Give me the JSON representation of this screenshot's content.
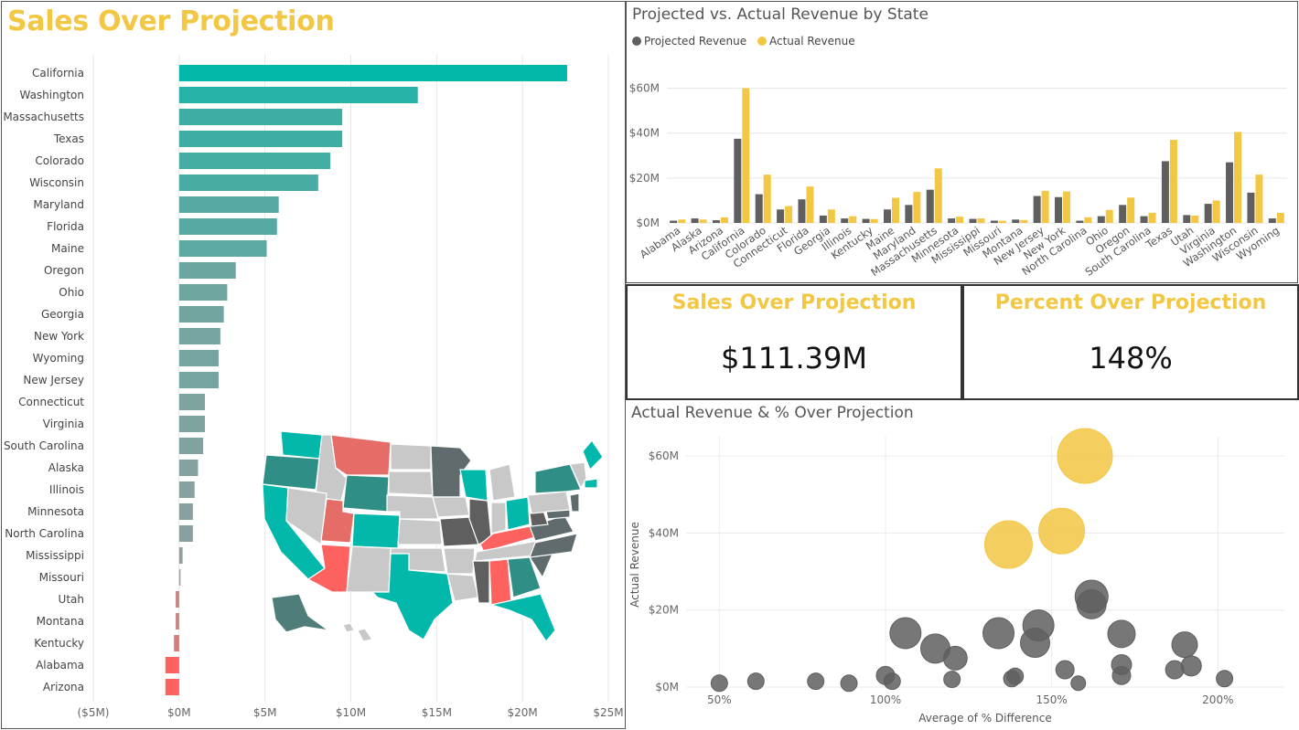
{
  "main_title": "Sales Over Projection",
  "colors": {
    "accent": "#F2C744",
    "projected": "#5F5F5F",
    "actual": "#F2C744",
    "teal": "#01B8AA",
    "red": "#FD625E",
    "gray_map": "#C8C8C8",
    "dark_map": "#5F6B6D"
  },
  "cards": [
    {
      "title": "Sales Over Projection",
      "value": "$111.39M"
    },
    {
      "title": "Percent Over Projection",
      "value": "148%"
    }
  ],
  "map": {
    "icon": "us-state-map-icon"
  },
  "chart_data": [
    {
      "type": "bar",
      "orientation": "horizontal",
      "title": "",
      "categories": [
        "California",
        "Washington",
        "Massachusetts",
        "Texas",
        "Colorado",
        "Wisconsin",
        "Maryland",
        "Florida",
        "Maine",
        "Oregon",
        "Ohio",
        "Georgia",
        "New York",
        "Wyoming",
        "New Jersey",
        "Connecticut",
        "Virginia",
        "South Carolina",
        "Alaska",
        "Illinois",
        "Minnesota",
        "North Carolina",
        "Mississippi",
        "Missouri",
        "Utah",
        "Montana",
        "Kentucky",
        "Alabama",
        "Arizona"
      ],
      "values": [
        22.6,
        13.9,
        9.5,
        9.5,
        8.8,
        8.1,
        5.8,
        5.7,
        5.1,
        3.3,
        2.8,
        2.6,
        2.4,
        2.3,
        2.3,
        1.5,
        1.5,
        1.4,
        1.1,
        0.9,
        0.8,
        0.8,
        0.2,
        0.05,
        -0.2,
        -0.2,
        -0.3,
        -0.8,
        -0.8
      ],
      "x_ticks": [
        "($5M)",
        "$0M",
        "$5M",
        "$10M",
        "$15M",
        "$20M",
        "$25M"
      ],
      "xlim": [
        -5,
        25
      ],
      "grid": true
    },
    {
      "type": "bar",
      "title": "Projected vs. Actual Revenue by State",
      "legend": [
        "Projected Revenue",
        "Actual Revenue"
      ],
      "legend_position": "top-left",
      "categories": [
        "Alabama",
        "Alaska",
        "Arizona",
        "California",
        "Colorado",
        "Connecticut",
        "Florida",
        "Georgia",
        "Illinois",
        "Kentucky",
        "Maine",
        "Maryland",
        "Massachusetts",
        "Minnesota",
        "Mississippi",
        "Missouri",
        "Montana",
        "New Jersey",
        "New York",
        "North Carolina",
        "Ohio",
        "Oregon",
        "South Carolina",
        "Texas",
        "Utah",
        "Virginia",
        "Washington",
        "Wisconsin",
        "Wyoming"
      ],
      "series": [
        {
          "name": "Projected Revenue",
          "values": [
            1.0,
            2.0,
            1.2,
            37.5,
            12.8,
            6.0,
            10.5,
            3.3,
            2.0,
            1.8,
            6.0,
            8.0,
            14.8,
            2.0,
            1.8,
            1.0,
            1.5,
            12.0,
            11.5,
            1.0,
            3.0,
            8.0,
            3.0,
            27.5,
            3.5,
            8.5,
            27.0,
            13.5,
            2.0
          ]
        },
        {
          "name": "Actual Revenue",
          "values": [
            1.5,
            1.5,
            2.5,
            60.0,
            21.5,
            7.5,
            16.2,
            6.0,
            3.0,
            1.7,
            11.2,
            13.8,
            24.3,
            2.8,
            2.0,
            1.0,
            1.3,
            14.3,
            14.0,
            2.5,
            5.8,
            11.3,
            4.5,
            37.0,
            3.3,
            10.0,
            40.5,
            21.5,
            4.5
          ]
        }
      ],
      "y_ticks": [
        "$0M",
        "$20M",
        "$40M",
        "$60M"
      ],
      "ylim": [
        0,
        70
      ],
      "grid": true
    },
    {
      "type": "scatter",
      "title": "Actual Revenue & % Over Projection",
      "xlabel": "Average of % Difference",
      "ylabel": "Actual Revenue",
      "x_ticks": [
        "50%",
        "100%",
        "150%",
        "200%"
      ],
      "y_ticks": [
        "$0M",
        "$20M",
        "$40M",
        "$60M"
      ],
      "xlim": [
        40,
        220
      ],
      "ylim": [
        0,
        65
      ],
      "points": [
        {
          "x": 160,
          "y": 60.0,
          "r": 30,
          "c": "actual"
        },
        {
          "x": 153,
          "y": 40.5,
          "r": 25,
          "c": "actual"
        },
        {
          "x": 137,
          "y": 37.0,
          "r": 26,
          "c": "actual"
        },
        {
          "x": 162,
          "y": 23.5,
          "r": 18,
          "c": "projected"
        },
        {
          "x": 162,
          "y": 21.5,
          "r": 16,
          "c": "projected"
        },
        {
          "x": 146,
          "y": 16.0,
          "r": 17,
          "c": "projected"
        },
        {
          "x": 106,
          "y": 14.0,
          "r": 17,
          "c": "projected"
        },
        {
          "x": 134,
          "y": 14.0,
          "r": 17,
          "c": "projected"
        },
        {
          "x": 171,
          "y": 13.8,
          "r": 15,
          "c": "projected"
        },
        {
          "x": 145,
          "y": 11.5,
          "r": 16,
          "c": "projected"
        },
        {
          "x": 190,
          "y": 11.0,
          "r": 14,
          "c": "projected"
        },
        {
          "x": 115,
          "y": 10.0,
          "r": 16,
          "c": "projected"
        },
        {
          "x": 121,
          "y": 7.5,
          "r": 13,
          "c": "projected"
        },
        {
          "x": 171,
          "y": 5.8,
          "r": 11,
          "c": "projected"
        },
        {
          "x": 192,
          "y": 5.5,
          "r": 11,
          "c": "projected"
        },
        {
          "x": 154,
          "y": 4.5,
          "r": 10,
          "c": "projected"
        },
        {
          "x": 187,
          "y": 4.5,
          "r": 10,
          "c": "projected"
        },
        {
          "x": 100,
          "y": 3.0,
          "r": 10,
          "c": "projected"
        },
        {
          "x": 171,
          "y": 3.0,
          "r": 10,
          "c": "projected"
        },
        {
          "x": 139,
          "y": 2.8,
          "r": 9,
          "c": "projected"
        },
        {
          "x": 138,
          "y": 2.2,
          "r": 9,
          "c": "projected"
        },
        {
          "x": 202,
          "y": 2.2,
          "r": 9,
          "c": "projected"
        },
        {
          "x": 120,
          "y": 2.0,
          "r": 9,
          "c": "projected"
        },
        {
          "x": 102,
          "y": 1.5,
          "r": 9,
          "c": "projected"
        },
        {
          "x": 61,
          "y": 1.5,
          "r": 9,
          "c": "projected"
        },
        {
          "x": 79,
          "y": 1.5,
          "r": 9,
          "c": "projected"
        },
        {
          "x": 50,
          "y": 1.0,
          "r": 9,
          "c": "projected"
        },
        {
          "x": 89,
          "y": 1.0,
          "r": 9,
          "c": "projected"
        },
        {
          "x": 158,
          "y": 1.0,
          "r": 8,
          "c": "projected"
        }
      ],
      "grid": true
    }
  ]
}
